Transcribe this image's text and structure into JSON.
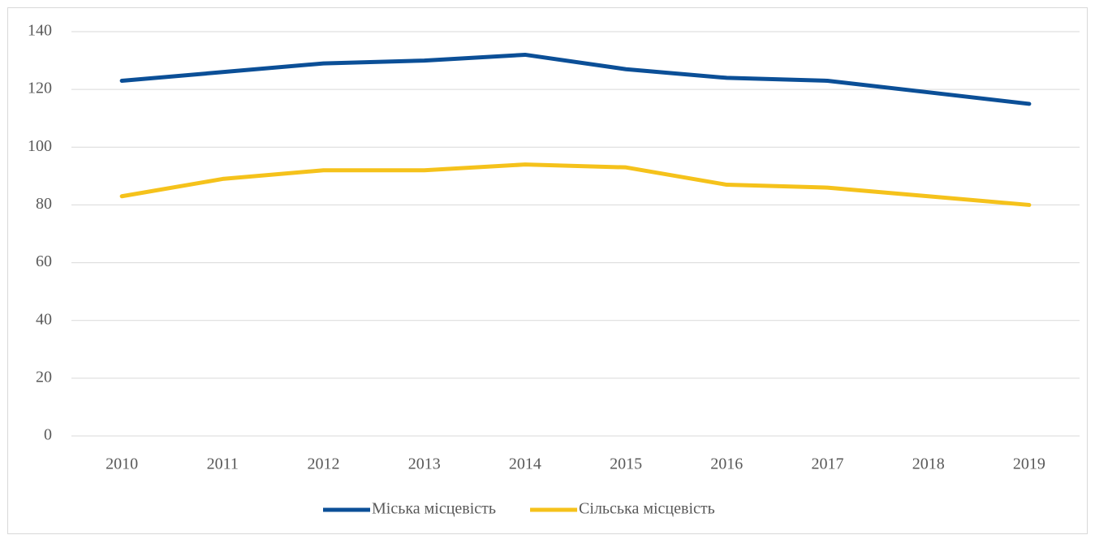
{
  "chart_data": {
    "type": "line",
    "categories": [
      "2010",
      "2011",
      "2012",
      "2013",
      "2014",
      "2015",
      "2016",
      "2017",
      "2018",
      "2019"
    ],
    "series": [
      {
        "name": "Міська місцевість",
        "color": "#0b4f97",
        "values": [
          123,
          126,
          129,
          130,
          132,
          127,
          124,
          123,
          119,
          115
        ]
      },
      {
        "name": "Сільська місцевість",
        "color": "#f5c21b",
        "values": [
          83,
          89,
          92,
          92,
          94,
          93,
          87,
          86,
          83,
          80
        ]
      }
    ],
    "ylim": [
      0,
      140
    ],
    "yticks": [
      0,
      20,
      40,
      60,
      80,
      100,
      120,
      140
    ],
    "grid": true,
    "legend": "bottom"
  }
}
